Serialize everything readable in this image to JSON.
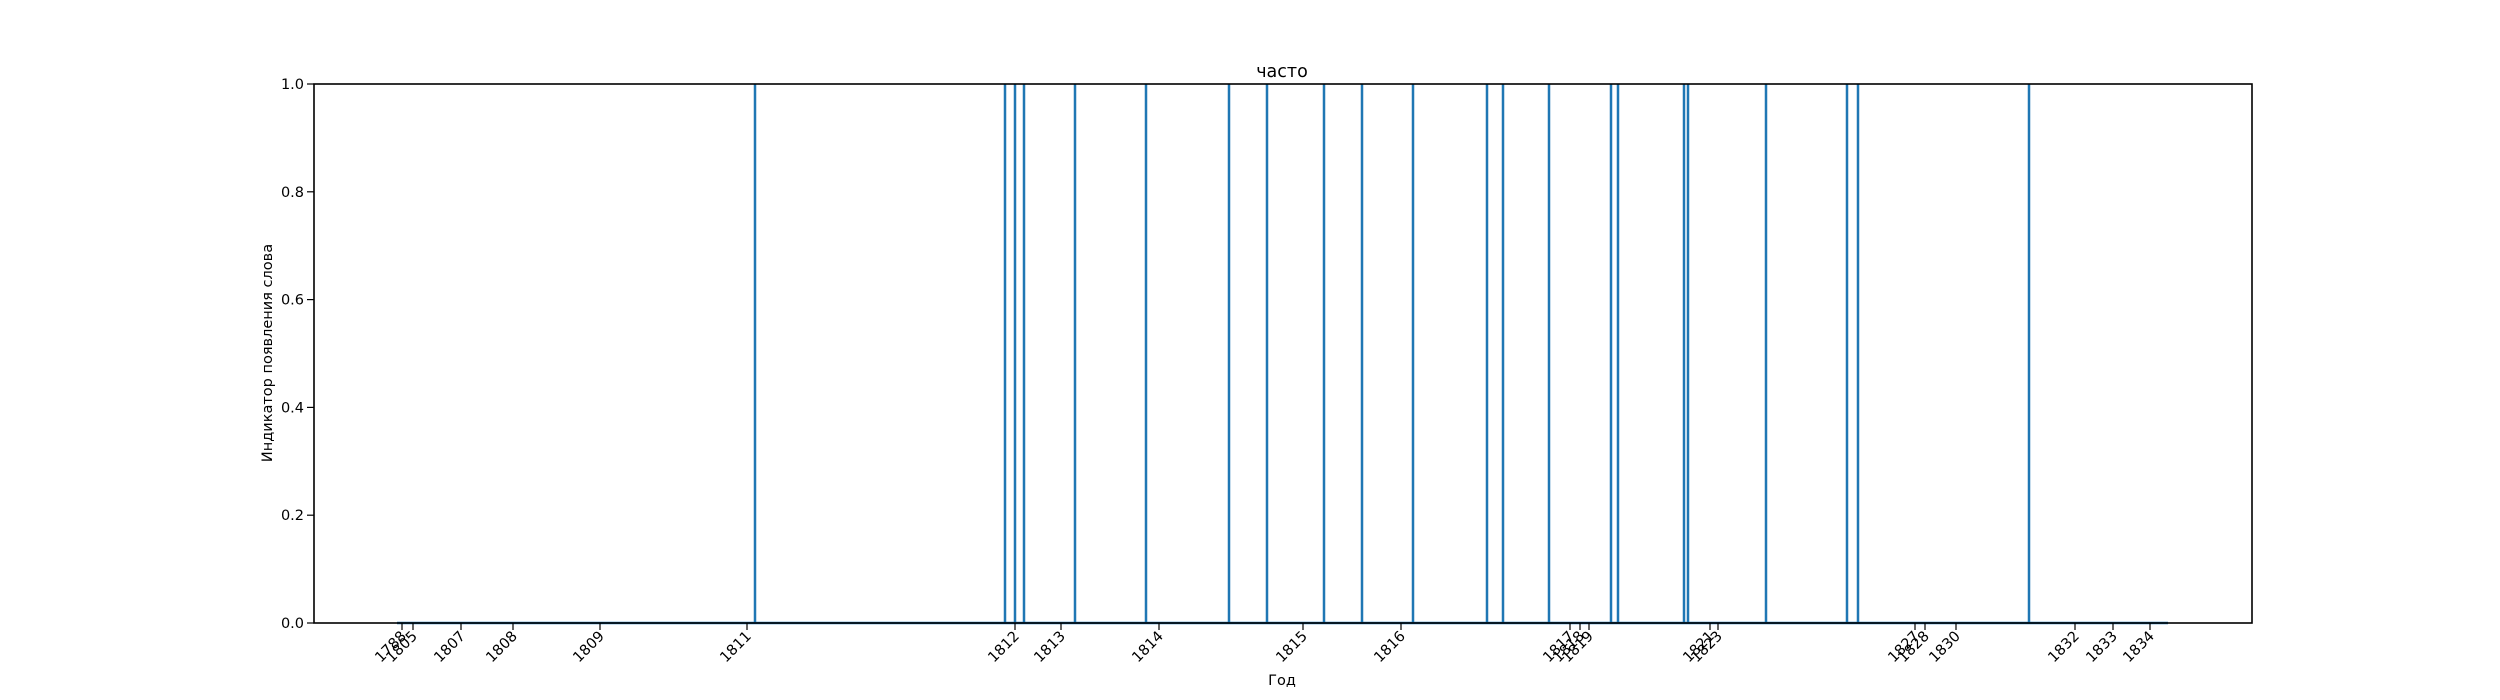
{
  "chart_data": {
    "type": "line",
    "title": "часто",
    "xlabel": "Год",
    "ylabel": "Индикатор появления слова",
    "ylim": [
      0,
      1
    ],
    "y_ticks": [
      "0.0",
      "0.2",
      "0.4",
      "0.6",
      "0.8",
      "1.0"
    ],
    "x_tick_labels": [
      "1788",
      "1805",
      "1807",
      "1808",
      "1809",
      "1811",
      "1812",
      "1813",
      "1814",
      "1815",
      "1816",
      "1817",
      "1818",
      "1819",
      "1821",
      "1823",
      "1827",
      "1828",
      "1830",
      "1832",
      "1833",
      "1834"
    ],
    "series": [
      {
        "color": "#1f77b4"
      }
    ],
    "grid": false
  }
}
